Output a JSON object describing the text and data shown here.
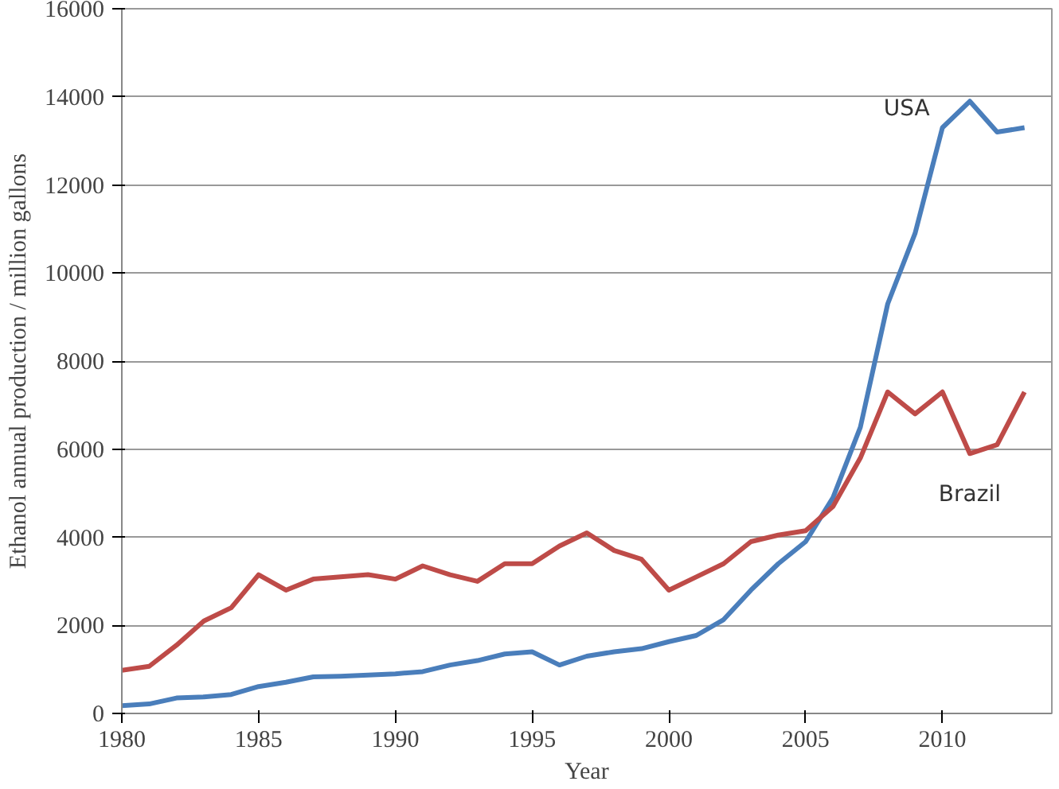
{
  "chart_data": {
    "type": "line",
    "xlabel": "Year",
    "ylabel": "Ethanol annual production / million gallons",
    "x": [
      1980,
      1981,
      1982,
      1983,
      1984,
      1985,
      1986,
      1987,
      1988,
      1989,
      1990,
      1991,
      1992,
      1993,
      1994,
      1995,
      1996,
      1997,
      1998,
      1999,
      2000,
      2001,
      2002,
      2003,
      2004,
      2005,
      2006,
      2007,
      2008,
      2009,
      2010,
      2011,
      2012,
      2013
    ],
    "series": [
      {
        "name": "USA",
        "color": "#4a7ebb",
        "values": [
          175,
          215,
          350,
          375,
          430,
          610,
          710,
          830,
          845,
          870,
          900,
          950,
          1100,
          1200,
          1350,
          1400,
          1100,
          1300,
          1400,
          1470,
          1630,
          1770,
          2130,
          2800,
          3400,
          3900,
          4900,
          6500,
          9300,
          10900,
          13300,
          13900,
          13200,
          13300
        ]
      },
      {
        "name": "Brazil",
        "color": "#be4b48",
        "values": [
          980,
          1070,
          1550,
          2100,
          2400,
          3150,
          2800,
          3050,
          3100,
          3150,
          3050,
          3350,
          3150,
          3000,
          3400,
          3400,
          3800,
          4100,
          3700,
          3500,
          2800,
          3100,
          3400,
          3900,
          4050,
          4150,
          4700,
          5800,
          7300,
          6800,
          7300,
          5900,
          6100,
          7300
        ]
      }
    ],
    "xlim": [
      1980,
      2014
    ],
    "ylim": [
      0,
      16000
    ],
    "xticks": [
      1980,
      1985,
      1990,
      1995,
      2000,
      2005,
      2010
    ],
    "yticks": [
      0,
      2000,
      4000,
      6000,
      8000,
      10000,
      12000,
      14000,
      16000
    ],
    "grid": "y",
    "legend": false,
    "marker": "none",
    "line_style": "solid"
  }
}
